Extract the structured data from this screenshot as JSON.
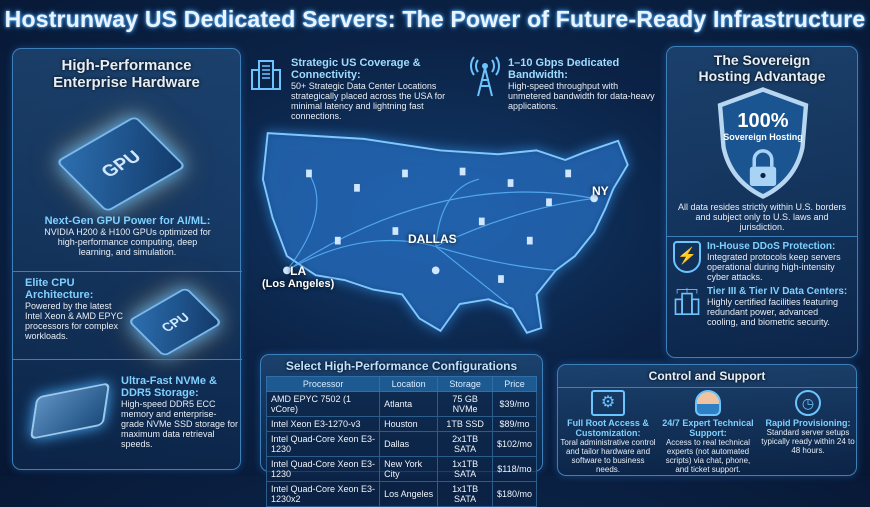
{
  "title": "Hostrunway US Dedicated Servers: The Power of Future-Ready Infrastructure",
  "hardware": {
    "heading_line1": "High-Performance",
    "heading_line2": "Enterprise Hardware",
    "gpu": {
      "chip_label": "GPU",
      "title": "Next-Gen GPU Power for AI/ML:",
      "text": "NVIDIA H200 & H100 GPUs optimized for high-performance computing, deep learning, and simulation."
    },
    "cpu": {
      "chip_label": "CPU",
      "title": "Elite CPU Architecture:",
      "text": "Powered by the latest Intel Xeon & AMD EPYC processors for complex workloads."
    },
    "storage": {
      "title": "Ultra-Fast NVMe & DDR5 Storage:",
      "text": "High-speed DDR5 ECC memory and enterprise-grade NVMe SSD storage for maximum data retrieval speeds."
    }
  },
  "coverage": {
    "title": "Strategic US Coverage & Connectivity:",
    "text": "50+ Strategic Data Center Locations strategically placed across the USA for minimal latency and lightning fast connections.",
    "icon": "data-center-building-icon"
  },
  "bandwidth": {
    "title": "1–10 Gbps Dedicated Bandwidth:",
    "text": "High-speed throughput with unmetered bandwidth for data-heavy applications.",
    "icon": "antenna-tower-icon"
  },
  "map": {
    "cities": [
      {
        "label": "LA",
        "sub": "(Los Angeles)"
      },
      {
        "label": "DALLAS"
      },
      {
        "label": "NY"
      }
    ]
  },
  "sovereign": {
    "heading_line1": "The Sovereign",
    "heading_line2": "Hosting Advantage",
    "badge_value": "100%",
    "badge_label": "Sovereign Hosting",
    "text": "All data resides strictly within U.S. borders and subject only to U.S. laws and jurisdiction.",
    "features": [
      {
        "title": "In-House DDoS Protection:",
        "text": "Integrated protocols keep servers operational during high-intensity cyber attacks.",
        "icon": "shield-lightning-icon"
      },
      {
        "title": "Tier III & Tier IV Data Centers:",
        "text": "Highly certified facilities featuring redundant power, advanced cooling, and biometric security.",
        "icon": "data-center-icon"
      }
    ]
  },
  "configs": {
    "title": "Select High-Performance Configurations",
    "columns": [
      "Processor",
      "Location",
      "Storage",
      "Price"
    ],
    "rows": [
      [
        "AMD EPYC 7502 (1 vCore)",
        "Atlanta",
        "75 GB NVMe",
        "$39/mo"
      ],
      [
        "Intel Xeon E3-1270-v3",
        "Houston",
        "1TB SSD",
        "$89/mo"
      ],
      [
        "Intel Quad-Core Xeon E3-1230",
        "Dallas",
        "2x1TB SATA",
        "$102/mo"
      ],
      [
        "Intel Quad-Core Xeon E3-1230",
        "New York City",
        "1x1TB SATA",
        "$118/mo"
      ],
      [
        "Intel Quad-Core Xeon E3-1230x2",
        "Los Angeles",
        "1x1TB SATA",
        "$180/mo"
      ]
    ]
  },
  "support": {
    "title": "Control and Support",
    "items": [
      {
        "title": "Full Root Access & Customization:",
        "text": "Toral administrative control and tailor hardware and software to business needs.",
        "icon": "gear-wrench-window-icon"
      },
      {
        "title": "24/7 Expert Technical Support:",
        "text": "Access to real technical experts (not automated scripts) via chat, phone, and ticket support.",
        "icon": "headset-agent-icon"
      },
      {
        "title": "Rapid Provisioning:",
        "text": "Standard server setups typically ready within 24 to 48 hours.",
        "icon": "fast-clock-icon"
      }
    ]
  },
  "colors": {
    "accent": "#7fd0ff",
    "background": "#0b2347",
    "panel_border": "#3d7fb8"
  }
}
